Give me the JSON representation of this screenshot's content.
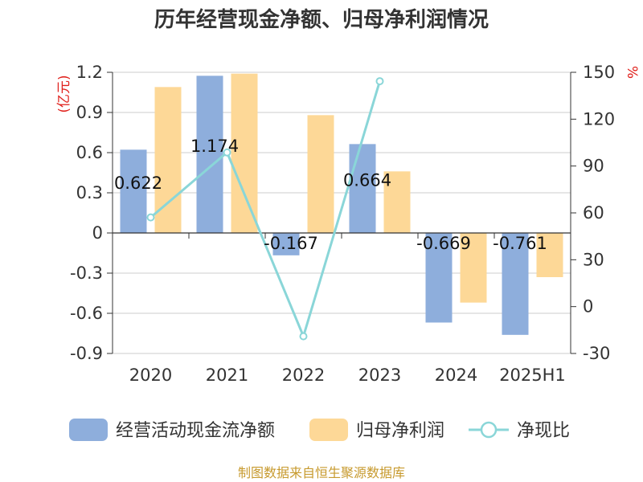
{
  "chart_data": {
    "type": "bar",
    "title": "历年经营现金净额、归母净利润情况",
    "categories": [
      "2020",
      "2021",
      "2022",
      "2023",
      "2024",
      "2025H1"
    ],
    "series": [
      {
        "name": "经营活动现金流净额",
        "type": "bar",
        "axis": "left",
        "color": "#8eaedc",
        "values": [
          0.622,
          1.174,
          -0.167,
          0.664,
          -0.669,
          -0.761
        ]
      },
      {
        "name": "归母净利润",
        "type": "bar",
        "axis": "left",
        "color": "#fdd897",
        "values": [
          1.09,
          1.19,
          0.88,
          0.46,
          -0.52,
          -0.33
        ]
      },
      {
        "name": "净现比",
        "type": "line",
        "axis": "right",
        "color": "#8ad6d8",
        "values": [
          57.1,
          98.7,
          -19.0,
          144.3,
          null,
          null
        ]
      }
    ],
    "data_labels": [
      "0.622",
      "1.174",
      "-0.167",
      "0.664",
      "-0.669",
      "-0.761"
    ],
    "y_left": {
      "unit": "(亿元)",
      "ticks": [
        "1.2",
        "0.9",
        "0.6",
        "0.3",
        "0",
        "-0.3",
        "-0.6",
        "-0.9"
      ],
      "min": -0.9,
      "max": 1.2
    },
    "y_right": {
      "unit": "%",
      "ticks": [
        "150",
        "120",
        "90",
        "60",
        "30",
        "0",
        "-30"
      ],
      "min": -30,
      "max": 150
    },
    "grid": true,
    "legend_position": "bottom"
  },
  "source": "制图数据来自恒生聚源数据库"
}
